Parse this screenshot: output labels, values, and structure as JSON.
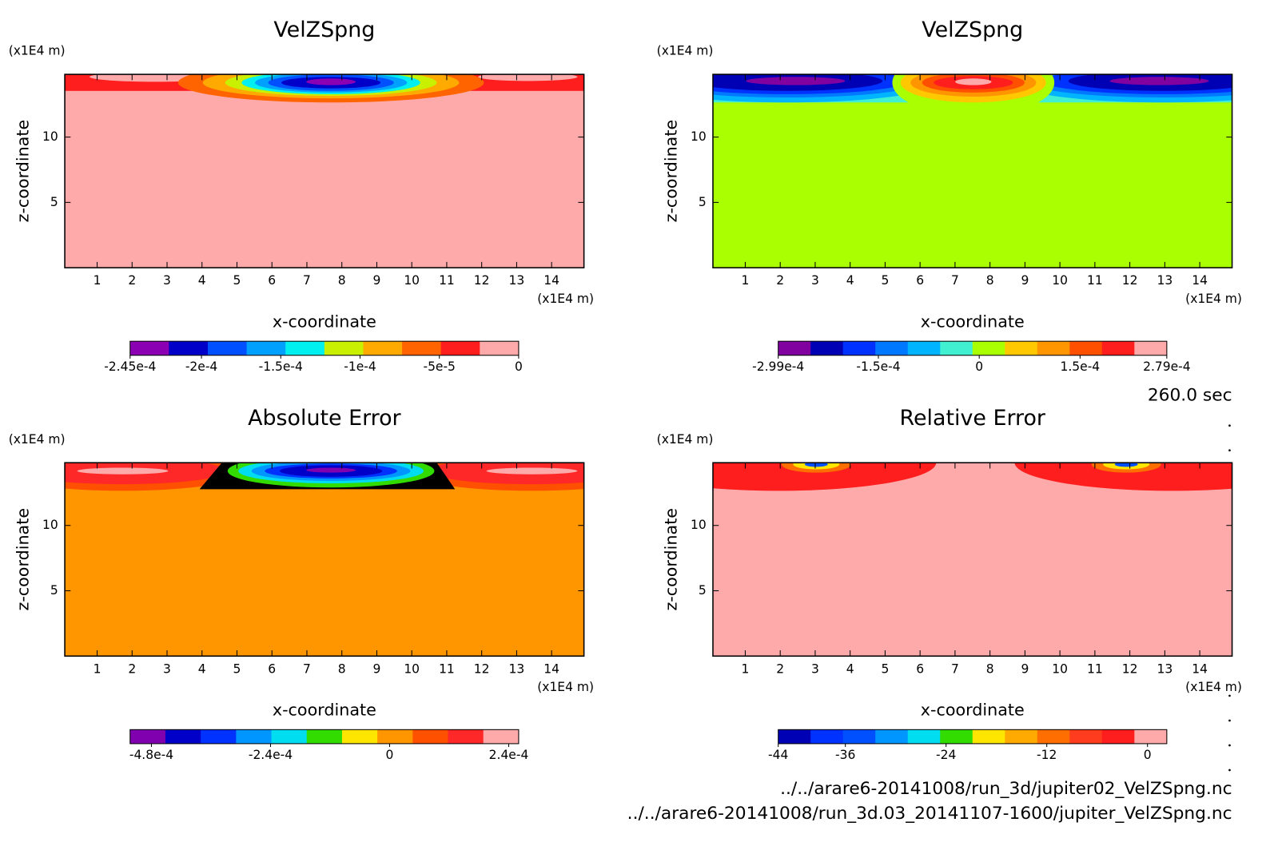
{
  "chart_data": [
    {
      "type": "contour",
      "title": "VelZSpng",
      "xlabel": "x-coordinate",
      "ylabel": "z-coordinate",
      "x_unit": "(x1E4 m)",
      "y_unit": "(x1E4 m)",
      "xlim": [
        0.075,
        14.925
      ],
      "ylim": [
        0,
        14.8
      ],
      "xticks": [
        1,
        2,
        3,
        4,
        5,
        6,
        7,
        8,
        9,
        10,
        11,
        12,
        13,
        14
      ],
      "yticks": [
        5,
        10
      ],
      "fill_color": "#ffaaaa",
      "colorbar": {
        "clim": [
          -0.000245,
          0
        ],
        "colors": [
          "#8c00b4",
          "#0000c8",
          "#0050ff",
          "#00a0ff",
          "#00f0f0",
          "#c8f000",
          "#ffaa00",
          "#ff6400",
          "#ff1e1e",
          "#ffaaaa"
        ],
        "ticks": [
          {
            "value": -0.000245,
            "label": "-2.45e-4"
          },
          {
            "value": -0.0002,
            "label": "-2e-4"
          },
          {
            "value": -0.00015,
            "label": "-1.5e-4"
          },
          {
            "value": -0.0001,
            "label": "-1e-4"
          },
          {
            "value": -5e-05,
            "label": "-5e-5"
          },
          0
        ]
      }
    },
    {
      "type": "contour",
      "title": "VelZSpng",
      "xlabel": "x-coordinate",
      "ylabel": "z-coordinate",
      "x_unit": "(x1E4 m)",
      "y_unit": "(x1E4 m)",
      "xlim": [
        0.075,
        14.925
      ],
      "ylim": [
        0,
        14.8
      ],
      "xticks": [
        1,
        2,
        3,
        4,
        5,
        6,
        7,
        8,
        9,
        10,
        11,
        12,
        13,
        14
      ],
      "yticks": [
        5,
        10
      ],
      "fill_color": "#aaff00",
      "colorbar": {
        "clim": [
          -0.000299,
          0.000279
        ],
        "colors": [
          "#8000a0",
          "#0000b4",
          "#0032ff",
          "#0078ff",
          "#00b4ff",
          "#40f0d0",
          "#aaff00",
          "#ffc800",
          "#ff9600",
          "#ff5000",
          "#ff1e1e",
          "#ffaaaa"
        ],
        "ticks": [
          {
            "value": -0.000299,
            "label": "-2.99e-4"
          },
          {
            "value": -0.00015,
            "label": "-1.5e-4"
          },
          0,
          {
            "value": 0.00015,
            "label": "1.5e-4"
          },
          {
            "value": 0.000279,
            "label": "2.79e-4"
          }
        ]
      }
    },
    {
      "type": "contour",
      "title": "Absolute Error",
      "xlabel": "x-coordinate",
      "ylabel": "z-coordinate",
      "x_unit": "(x1E4 m)",
      "y_unit": "(x1E4 m)",
      "xlim": [
        0.075,
        14.925
      ],
      "ylim": [
        0,
        14.8
      ],
      "xticks": [
        1,
        2,
        3,
        4,
        5,
        6,
        7,
        8,
        9,
        10,
        11,
        12,
        13,
        14
      ],
      "yticks": [
        5,
        10
      ],
      "fill_color": "#ff9600",
      "colorbar": {
        "clim": [
          -0.000523,
          0.00026
        ],
        "colors": [
          "#8000b0",
          "#0000c8",
          "#0032ff",
          "#0096ff",
          "#00dcf0",
          "#32dc00",
          "#ffe600",
          "#ff9600",
          "#ff5000",
          "#ff2828",
          "#ffaaaa"
        ],
        "ticks": [
          {
            "value": -0.00048,
            "label": "-4.8e-4"
          },
          {
            "value": -0.00024,
            "label": "-2.4e-4"
          },
          0,
          {
            "value": 0.00024,
            "label": "2.4e-4"
          }
        ]
      }
    },
    {
      "type": "contour",
      "title": "Relative Error",
      "xlabel": "x-coordinate",
      "ylabel": "z-coordinate",
      "x_unit": "(x1E4 m)",
      "y_unit": "(x1E4 m)",
      "xlim": [
        0.075,
        14.925
      ],
      "ylim": [
        0,
        14.8
      ],
      "xticks": [
        1,
        2,
        3,
        4,
        5,
        6,
        7,
        8,
        9,
        10,
        11,
        12,
        13,
        14
      ],
      "yticks": [
        5,
        10
      ],
      "fill_color": "#ffaaaa",
      "colorbar": {
        "clim": [
          -44,
          2.3
        ],
        "colors": [
          "#0000b4",
          "#0032ff",
          "#0050ff",
          "#0096ff",
          "#00dcf0",
          "#32dc00",
          "#ffe600",
          "#ffaa00",
          "#ff6e00",
          "#ff3c1e",
          "#ff1e1e",
          "#ffaaaa"
        ],
        "ticks": [
          -44,
          -36,
          -24,
          -12,
          0
        ]
      }
    }
  ],
  "annotations": {
    "time": "260.0 sec",
    "files": [
      "../../arare6-20141008/run_3d/jupiter02_VelZSpng.nc",
      "../../arare6-20141008/run_3d.03_20141107-1600/jupiter_VelZSpng.nc"
    ]
  }
}
